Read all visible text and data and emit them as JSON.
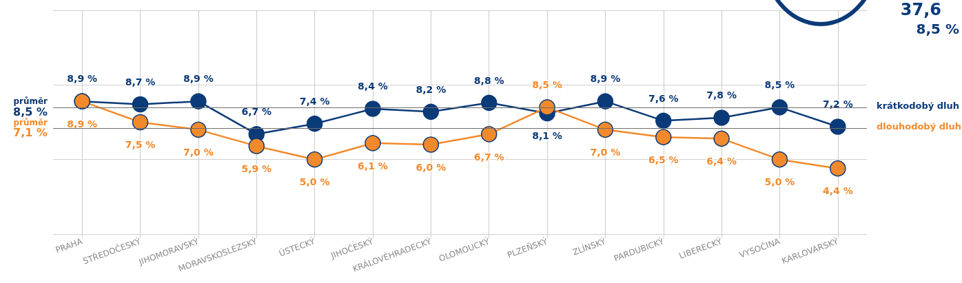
{
  "chart_data": {
    "type": "line",
    "categories": [
      "PRAHA",
      "STŘEDOČESKÝ",
      "JIHOMORAVSKÝ",
      "MORAVSKOSLEZSKÝ",
      "ÚSTECKÝ",
      "JIHOČESKÝ",
      "KRÁLOVÉHRADECKÝ",
      "OLOMOUCKÝ",
      "PLZEŇSKÝ",
      "ZLÍNSKÝ",
      "PARDUBICKÝ",
      "LIBERECKÝ",
      "VYSOČINA",
      "KARLOVARSKÝ"
    ],
    "series": [
      {
        "name": "krátkodobý dluh",
        "color": "#0b3a78",
        "values": [
          8.9,
          8.7,
          8.9,
          6.7,
          7.4,
          8.4,
          8.2,
          8.8,
          8.1,
          8.9,
          7.6,
          7.8,
          8.5,
          7.2
        ],
        "value_labels": [
          "8,9 %",
          "8,7 %",
          "8,9 %",
          "6,7 %",
          "7,4 %",
          "8,4 %",
          "8,2 %",
          "8,8 %",
          "8,1 %",
          "8,9 %",
          "7,6 %",
          "7,8 %",
          "8,5 %",
          "7,2 %"
        ]
      },
      {
        "name": "dlouhodobý dluh",
        "color": "#f28a2c",
        "values": [
          8.9,
          7.5,
          7.0,
          5.9,
          5.0,
          6.1,
          6.0,
          6.7,
          8.5,
          7.0,
          6.5,
          6.4,
          5.0,
          4.4
        ],
        "value_labels": [
          "8,9 %",
          "7,5 %",
          "7,0 %",
          "5,9 %",
          "5,0 %",
          "6,1 %",
          "6,0 %",
          "6,7 %",
          "8,5 %",
          "7,0 %",
          "6,5 %",
          "6,4 %",
          "5,0 %",
          "4,4 %"
        ]
      }
    ],
    "ylim": [
      0,
      15
    ],
    "yticks": [
      {
        "value": 5,
        "label": null
      },
      {
        "value": 10,
        "label": null
      }
    ],
    "tick_labels": "x",
    "grid": true,
    "legend": false,
    "marker": "circle",
    "line_style": "solid",
    "ref_lines": [
      {
        "axis": "y",
        "value": 8.5,
        "label": "průměr\n8,5 %",
        "color": "#6d6d6d"
      },
      {
        "axis": "y",
        "value": 7.1,
        "label": "průměr\n7,1 %",
        "color": "#6d6d6d"
      }
    ],
    "annotations": [
      "37,6",
      "8,5 %"
    ]
  }
}
